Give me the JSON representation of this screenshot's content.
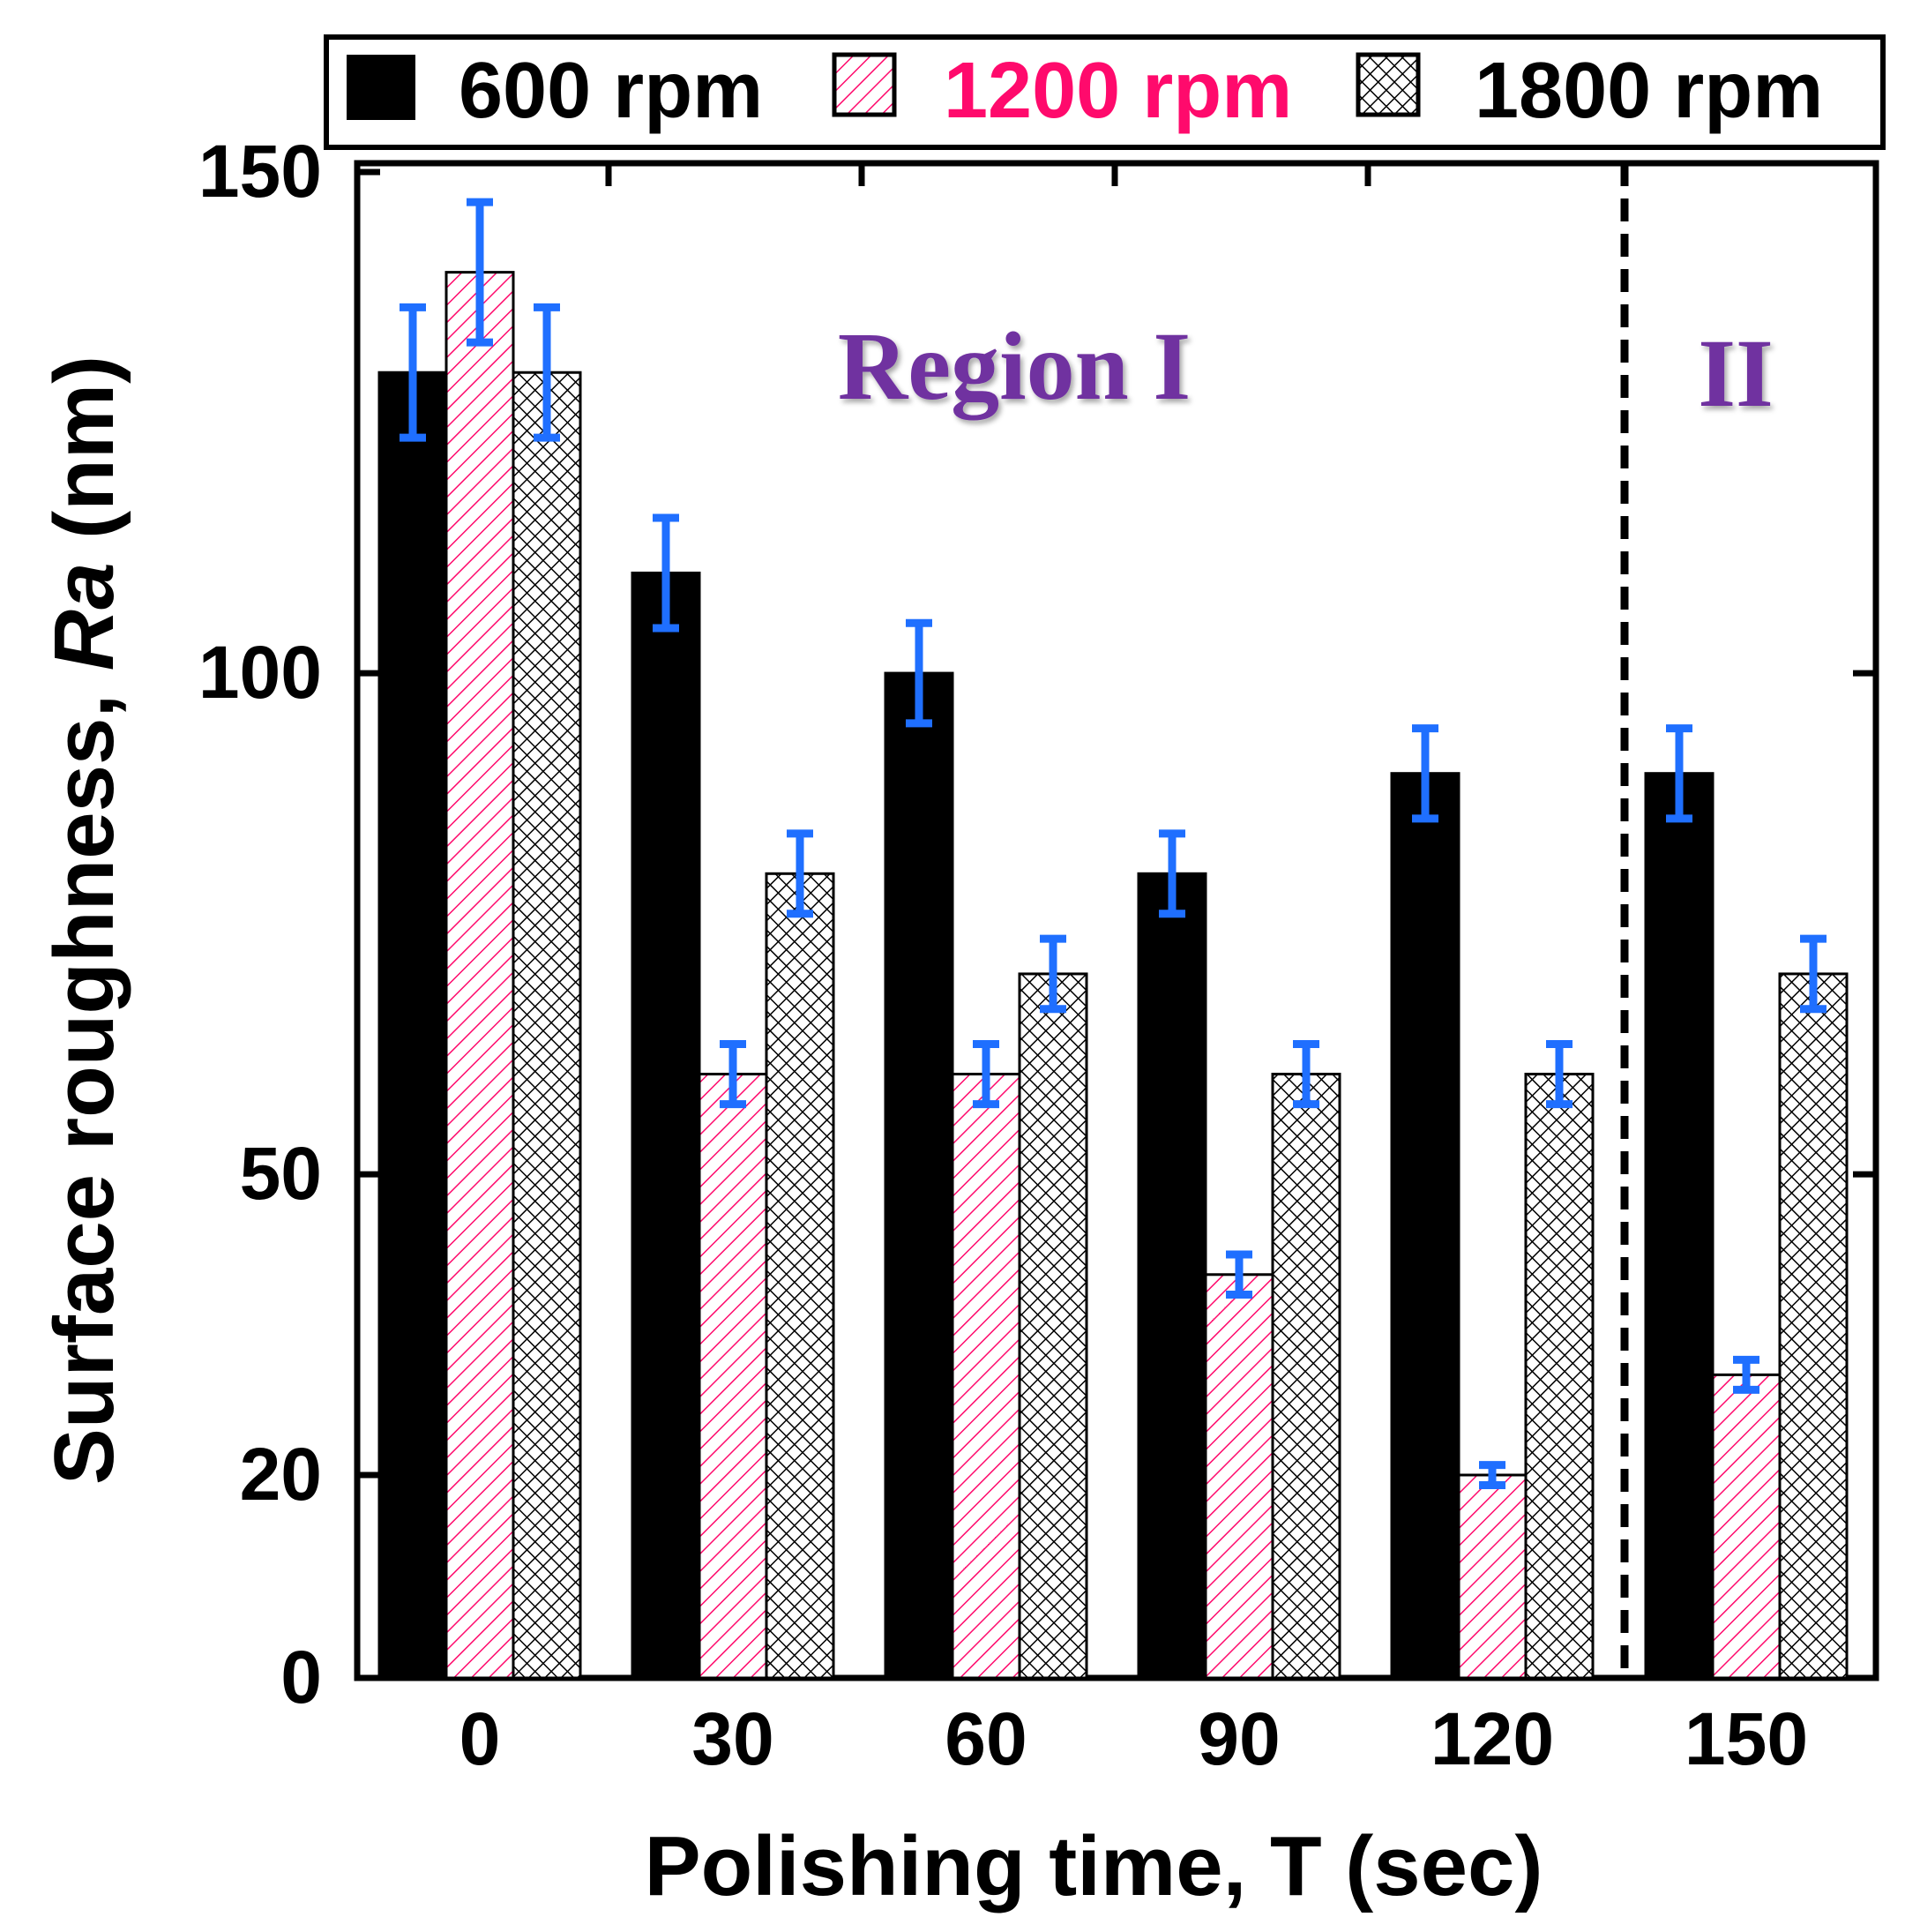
{
  "chart_data": {
    "type": "bar",
    "title": "",
    "xlabel": "Polishing time, T (sec)",
    "ylabel_prefix": "Surface roughness, ",
    "ylabel_italic": "Ra",
    "ylabel_suffix": " (nm)",
    "categories": [
      "0",
      "30",
      "60",
      "90",
      "120",
      "150"
    ],
    "y_ticks": [
      0,
      20,
      50,
      100,
      150
    ],
    "y_tick_labels": [
      "0",
      "20",
      "50",
      "100",
      "150"
    ],
    "ylim": [
      0,
      150
    ],
    "series": [
      {
        "name": "600 rpm",
        "color": "#000000",
        "pattern": "solid",
        "values": [
          130,
          110,
          100,
          80,
          90,
          90
        ],
        "errors": [
          6.5,
          5.5,
          5,
          4,
          4.5,
          4.5
        ]
      },
      {
        "name": "1200 rpm",
        "color": "#ff0a6c",
        "pattern": "diagonal-hatch",
        "values": [
          140,
          60,
          60,
          40,
          20,
          30
        ],
        "errors": [
          7,
          3,
          3,
          2,
          1,
          1.5
        ]
      },
      {
        "name": "1800 rpm",
        "color": "#000000",
        "pattern": "crosshatch",
        "values": [
          130,
          80,
          70,
          60,
          60,
          70
        ],
        "errors": [
          6.5,
          4,
          3.5,
          3,
          3,
          3.5
        ]
      }
    ],
    "error_bar_color": "#1f6fff",
    "legend_position": "top",
    "annotations": [
      {
        "text": "Region I",
        "region": "left"
      },
      {
        "text": "II",
        "region": "right"
      }
    ],
    "divider_between": [
      "120",
      "150"
    ]
  }
}
